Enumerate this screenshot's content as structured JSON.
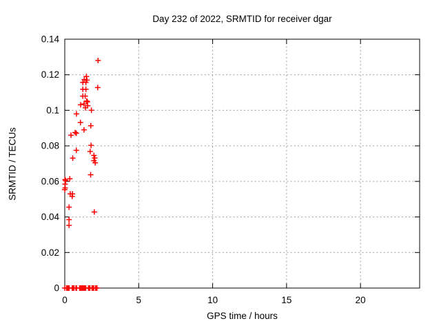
{
  "chart_data": {
    "type": "scatter",
    "title": "Day 232 of 2022, SRMTID for receiver dgar",
    "xlabel": "GPS time / hours",
    "ylabel": "SRMTID / TECUs",
    "xlim": [
      0,
      24
    ],
    "ylim": [
      0,
      0.14
    ],
    "x_ticks": [
      {
        "value": 0,
        "label": "0"
      },
      {
        "value": 5,
        "label": "5"
      },
      {
        "value": 10,
        "label": "10"
      },
      {
        "value": 15,
        "label": "15"
      },
      {
        "value": 20,
        "label": "20"
      }
    ],
    "y_ticks": [
      {
        "value": 0,
        "label": "0"
      },
      {
        "value": 0.02,
        "label": "0.02"
      },
      {
        "value": 0.04,
        "label": "0.04"
      },
      {
        "value": 0.06,
        "label": "0.06"
      },
      {
        "value": 0.08,
        "label": "0.08"
      },
      {
        "value": 0.1,
        "label": "0.1"
      },
      {
        "value": 0.12,
        "label": "0.12"
      },
      {
        "value": 0.14,
        "label": "0.14"
      }
    ],
    "grid": "dashed",
    "legend": "none",
    "marker": "plus",
    "series": [
      {
        "name": "SRMTID",
        "color": "#ff0000",
        "points": [
          [
            2.25,
            0.128
          ],
          [
            1.46,
            0.119
          ],
          [
            1.32,
            0.1173
          ],
          [
            1.5,
            0.117
          ],
          [
            1.22,
            0.1157
          ],
          [
            1.43,
            0.1157
          ],
          [
            2.23,
            0.1128
          ],
          [
            1.22,
            0.1118
          ],
          [
            1.43,
            0.1118
          ],
          [
            1.22,
            0.108
          ],
          [
            1.38,
            0.108
          ],
          [
            1.48,
            0.1052
          ],
          [
            1.53,
            0.1047
          ],
          [
            1.3,
            0.1036
          ],
          [
            1.07,
            0.1031
          ],
          [
            1.55,
            0.1026
          ],
          [
            1.4,
            0.1014
          ],
          [
            1.8,
            0.1
          ],
          [
            0.79,
            0.098
          ],
          [
            1.06,
            0.0931
          ],
          [
            1.76,
            0.0913
          ],
          [
            1.3,
            0.089
          ],
          [
            0.7,
            0.0875
          ],
          [
            0.78,
            0.0871
          ],
          [
            0.42,
            0.086
          ],
          [
            1.78,
            0.0803
          ],
          [
            0.78,
            0.0775
          ],
          [
            1.72,
            0.0768
          ],
          [
            1.97,
            0.0746
          ],
          [
            2.03,
            0.0732
          ],
          [
            0.54,
            0.0731
          ],
          [
            1.97,
            0.0717
          ],
          [
            2.06,
            0.0705
          ],
          [
            1.75,
            0.0637
          ],
          [
            0.34,
            0.0615
          ],
          [
            0.02,
            0.061
          ],
          [
            0.06,
            0.0604
          ],
          [
            0.02,
            0.0585
          ],
          [
            0.03,
            0.0563
          ],
          [
            0.0,
            0.0554
          ],
          [
            0.37,
            0.053
          ],
          [
            0.52,
            0.053
          ],
          [
            0.5,
            0.0516
          ],
          [
            0.29,
            0.0455
          ],
          [
            2.0,
            0.0428
          ],
          [
            0.29,
            0.0385
          ],
          [
            0.29,
            0.0353
          ],
          [
            0.0,
            0.0
          ],
          [
            0.12,
            0.0
          ],
          [
            0.18,
            0.0
          ],
          [
            0.24,
            0.0
          ],
          [
            0.3,
            0.0
          ],
          [
            0.5,
            0.0
          ],
          [
            0.56,
            0.0
          ],
          [
            0.62,
            0.0
          ],
          [
            0.75,
            0.0
          ],
          [
            0.8,
            0.0
          ],
          [
            1.0,
            0.0
          ],
          [
            1.06,
            0.0
          ],
          [
            1.12,
            0.0
          ],
          [
            1.18,
            0.0
          ],
          [
            1.24,
            0.0
          ],
          [
            1.3,
            0.0
          ],
          [
            1.36,
            0.0
          ],
          [
            1.42,
            0.0
          ],
          [
            1.6,
            0.0
          ],
          [
            1.66,
            0.0
          ],
          [
            1.7,
            0.0
          ],
          [
            1.84,
            0.0
          ],
          [
            1.9,
            0.0
          ],
          [
            1.96,
            0.0
          ],
          [
            2.08,
            0.0
          ],
          [
            2.14,
            0.0
          ],
          [
            2.18,
            0.0
          ]
        ]
      }
    ]
  },
  "colors": {
    "marker": "#ff0000",
    "border": "#000000",
    "grid": "#9c9c9c",
    "text": "#000000",
    "background": "#ffffff"
  }
}
